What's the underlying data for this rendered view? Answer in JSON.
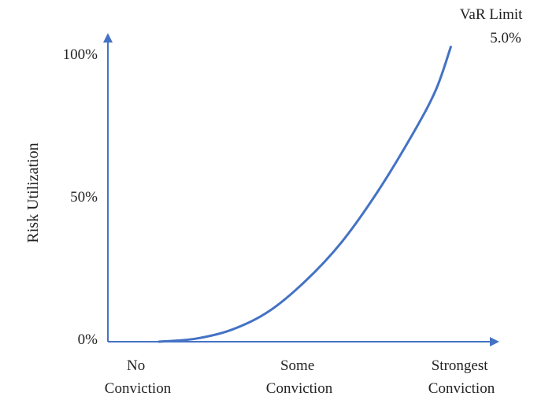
{
  "chart_data": {
    "type": "line",
    "title": "",
    "xlabel": "",
    "ylabel": "Risk Utilization",
    "x_ticks": [
      {
        "value": 0,
        "lines": [
          "No",
          "Conviction"
        ]
      },
      {
        "value": 1,
        "lines": [
          "Some",
          "Conviction"
        ]
      },
      {
        "value": 2,
        "lines": [
          "Strongest",
          "Conviction"
        ]
      }
    ],
    "y_ticks": [
      "0%",
      "50%",
      "100%"
    ],
    "xlim": [
      -0.35,
      2.3
    ],
    "ylim": [
      0,
      100
    ],
    "series": [
      {
        "x": [
          0,
          0.25,
          0.5,
          0.75,
          1.0,
          1.25,
          1.5,
          1.75,
          1.9,
          2.0
        ],
        "y": [
          0,
          1,
          4,
          10,
          20,
          33,
          50,
          70,
          84,
          98
        ]
      }
    ],
    "annotation": {
      "lines": [
        "VaR Limit",
        "5.0%"
      ]
    },
    "colors": {
      "axis": "#4472C4",
      "line": "#4472C4",
      "text": "#222222"
    }
  }
}
